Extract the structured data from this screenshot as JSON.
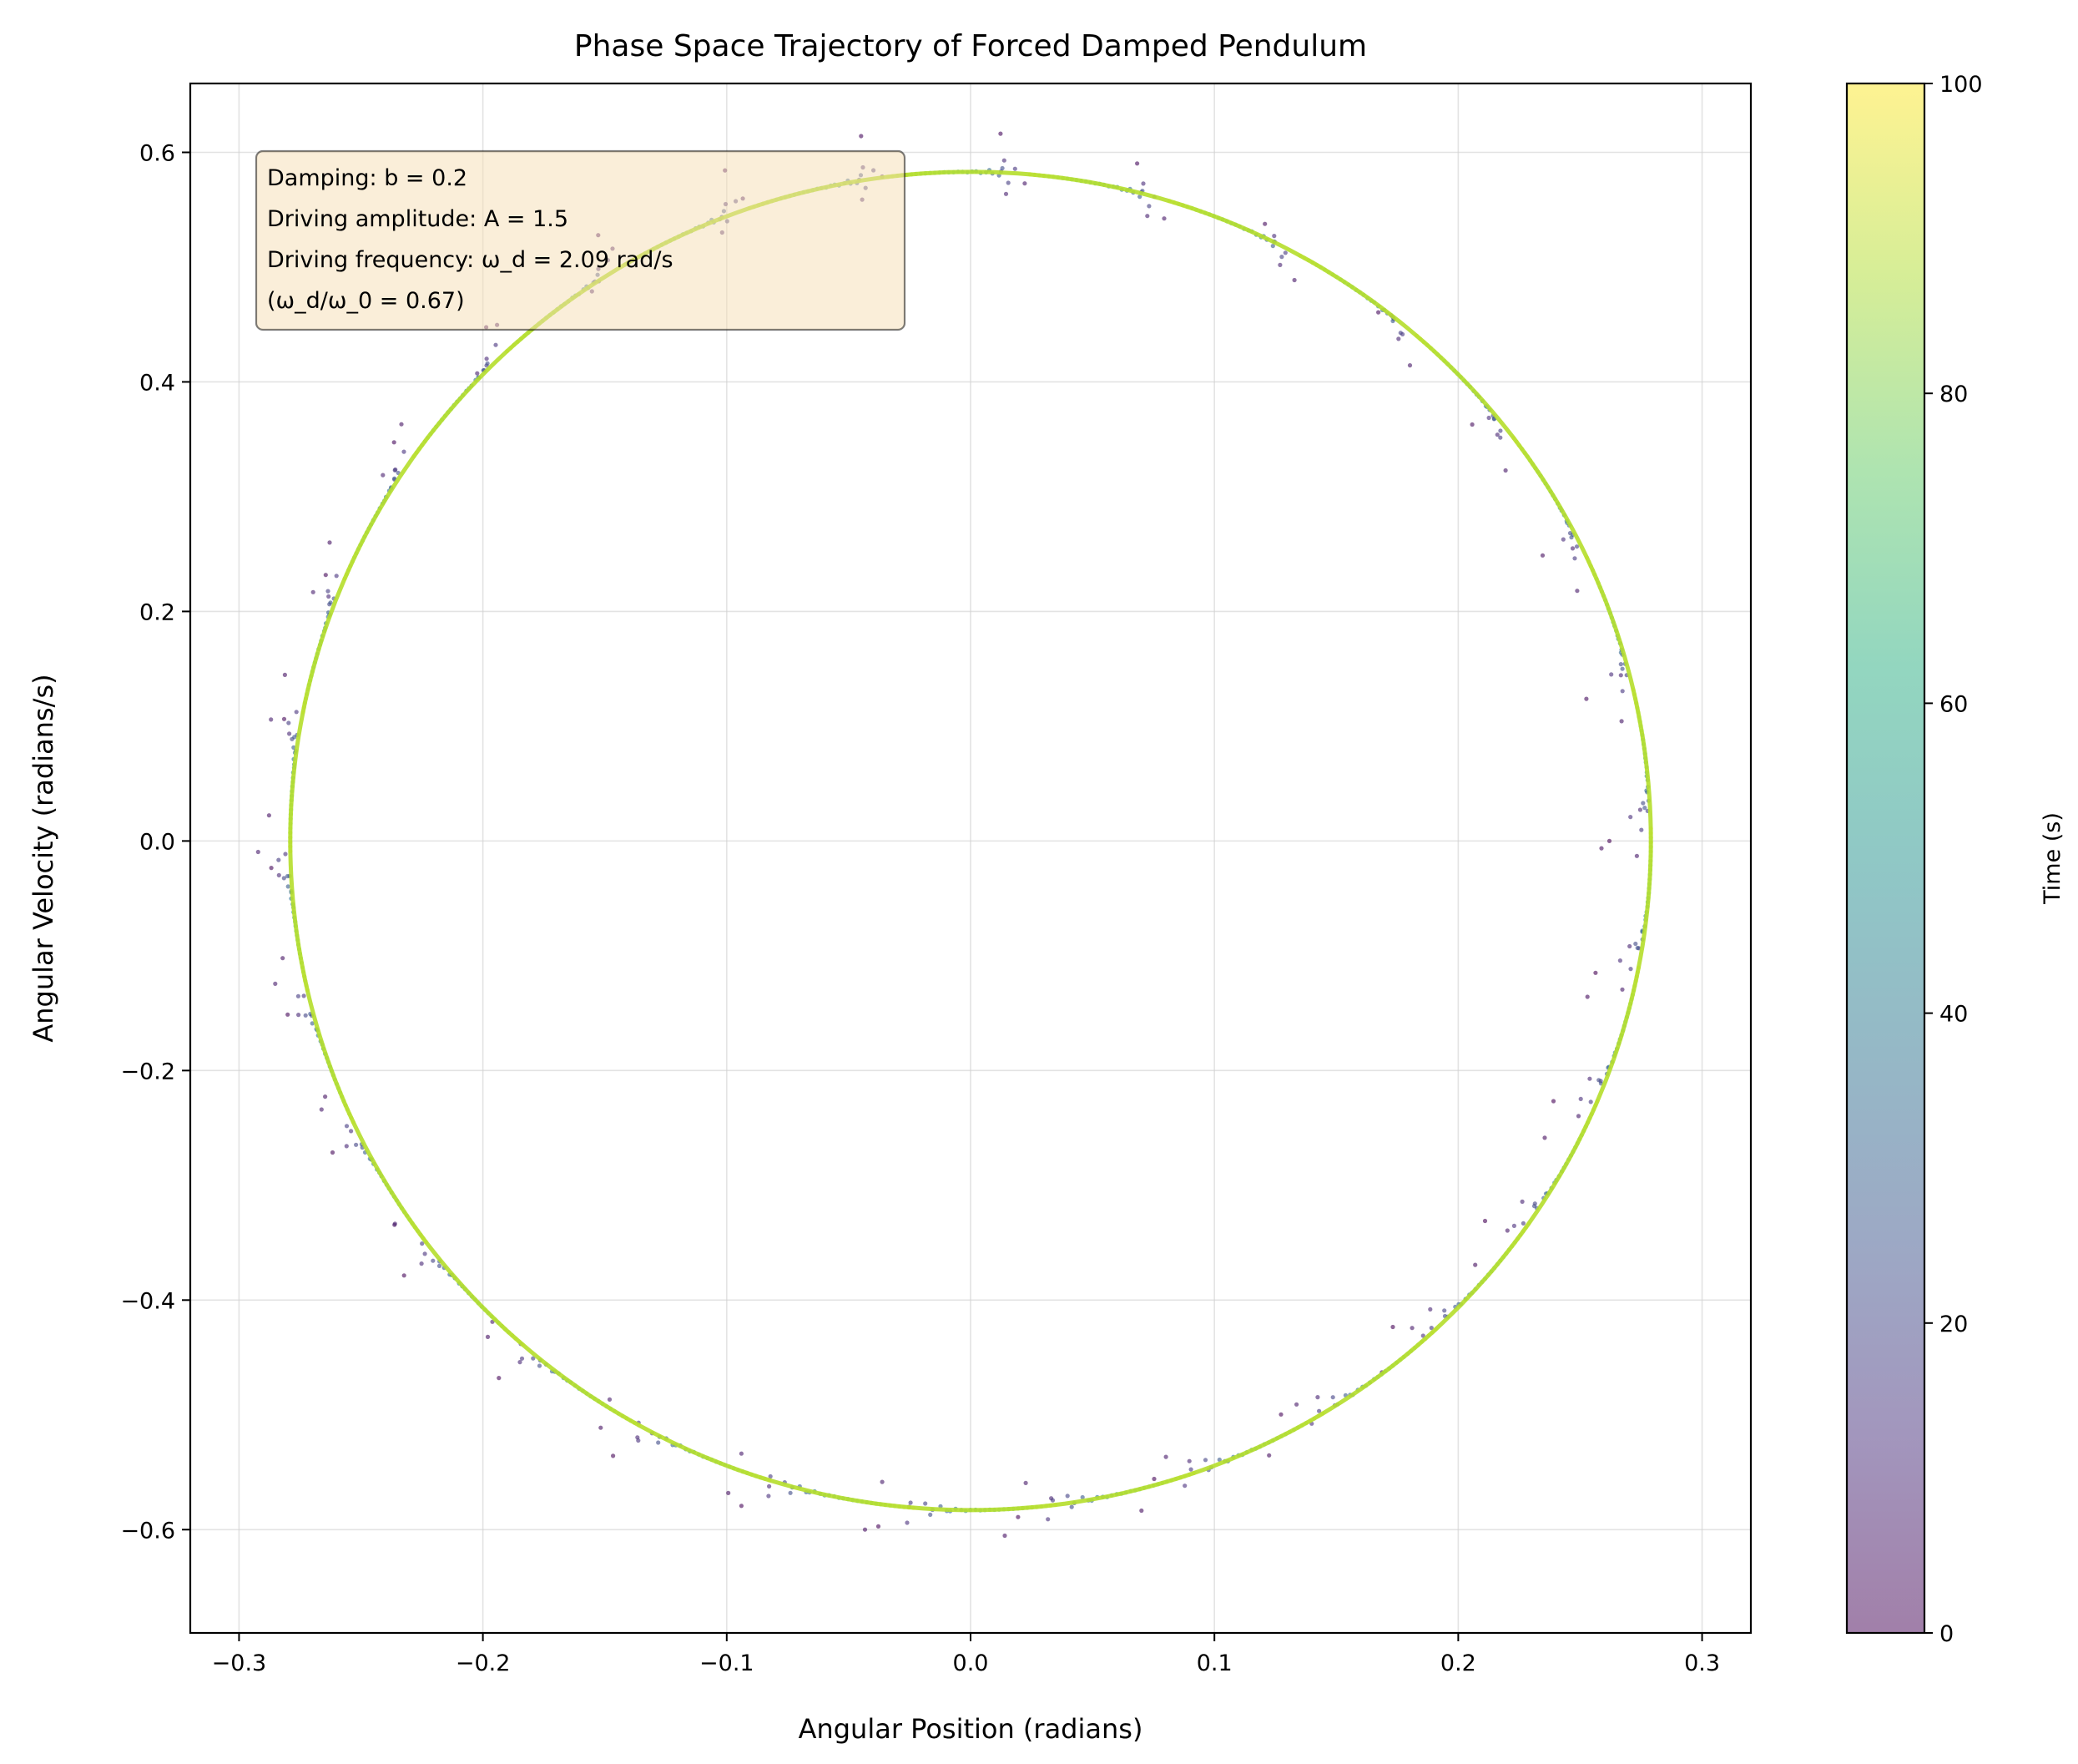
{
  "chart_data": {
    "type": "scatter",
    "title": "Phase Space Trajectory of Forced Damped Pendulum",
    "xlabel": "Angular Position (radians)",
    "ylabel": "Angular Velocity (radians/s)",
    "xlim": [
      -0.32,
      0.32
    ],
    "ylim": [
      -0.69,
      0.66
    ],
    "xticks": [
      -0.3,
      -0.2,
      -0.1,
      0.0,
      0.1,
      0.2,
      0.3
    ],
    "xtick_labels": [
      "−0.3",
      "−0.2",
      "−0.1",
      "0.0",
      "0.1",
      "0.2",
      "0.3"
    ],
    "yticks": [
      0.6,
      0.4,
      0.2,
      0.0,
      -0.2,
      -0.4,
      -0.6
    ],
    "ytick_labels": [
      "0.6",
      "0.4",
      "0.2",
      "0.0",
      "−0.2",
      "−0.4",
      "−0.6"
    ],
    "grid": true,
    "trajectory": {
      "initial_position": 0.262,
      "initial_velocity": 0.0,
      "steady_state_position_amplitude": 0.279,
      "steady_state_velocity_amplitude": 0.583,
      "transient_outer_position": 0.29,
      "transient_outer_velocity": 0.63,
      "time_start": 0,
      "time_end": 100
    },
    "colorbar": {
      "label": "Time (s)",
      "range": [
        0,
        100
      ],
      "ticks": [
        0,
        20,
        40,
        60,
        80,
        100
      ],
      "tick_labels": [
        "0",
        "20",
        "40",
        "60",
        "80",
        "100"
      ],
      "colormap": "viridis",
      "alpha": 0.5
    },
    "annotation": {
      "lines": [
        "Damping: b = 0.2",
        "Driving amplitude: A = 1.5",
        "Driving frequency: ω_d = 2.09 rad/s",
        "(ω_d/ω_0 = 0.67)"
      ],
      "location": "top-left",
      "background_color": "#f5deb3"
    },
    "colors": {
      "early_points": "#440154",
      "late_points": "#b5de2b",
      "grid": "#d0d0d0"
    }
  }
}
